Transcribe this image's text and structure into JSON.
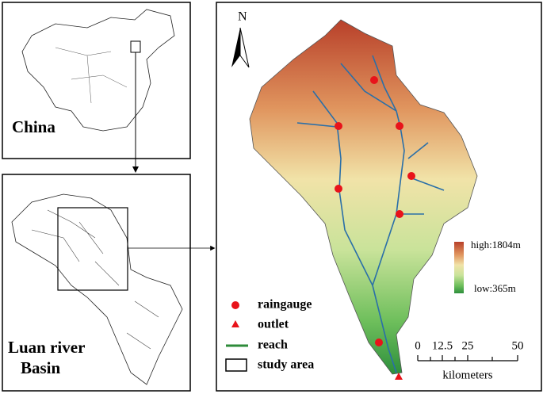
{
  "inset_china": {
    "label": "China"
  },
  "inset_luan": {
    "label_lines": [
      "Luan river",
      "Basin"
    ]
  },
  "map": {
    "north": "N",
    "elevation": {
      "high": "high:1804m",
      "low": "low:365m"
    },
    "legend": [
      "raingauge",
      "outlet",
      "reach",
      "study area"
    ],
    "scale": {
      "ticks": [
        "0",
        "12.5",
        "25",
        "50"
      ],
      "unit": "kilometers"
    }
  }
}
